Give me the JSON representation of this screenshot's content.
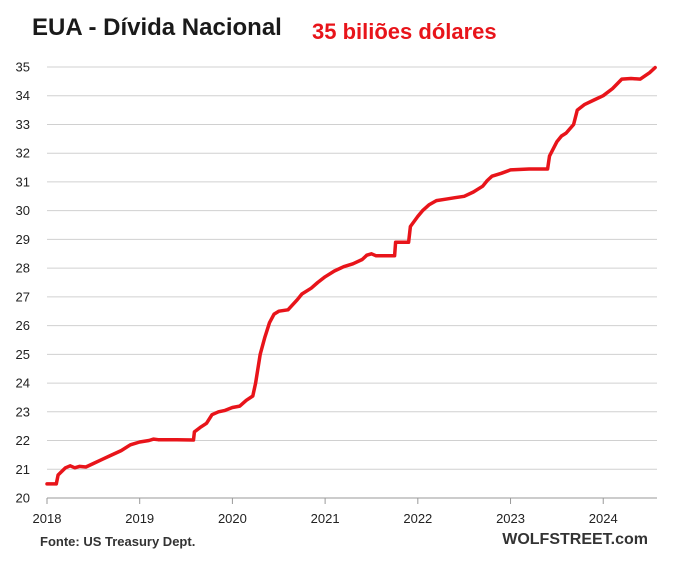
{
  "chart_data": {
    "type": "line",
    "title": "EUA - Dívida Nacional",
    "subtitle": "35 biliões dólares",
    "source": "Fonte: US Treasury Dept.",
    "brand": "WOLFSTREET.com",
    "xlabel": "",
    "ylabel": "",
    "ylim": [
      20,
      35
    ],
    "xlim": [
      2018.0,
      2024.58
    ],
    "x_ticks": [
      "2018",
      "2019",
      "2020",
      "2021",
      "2022",
      "2023",
      "2024"
    ],
    "y_ticks": [
      20,
      21,
      22,
      23,
      24,
      25,
      26,
      27,
      28,
      29,
      30,
      31,
      32,
      33,
      34,
      35
    ],
    "grid": true,
    "colors": {
      "line": "#e8141a",
      "subtitle": "#e8141a",
      "grid": "#d0d0d0"
    },
    "series": [
      {
        "values": [
          [
            2018.0,
            20.49
          ],
          [
            2018.1,
            20.49
          ],
          [
            2018.12,
            20.8
          ],
          [
            2018.2,
            21.05
          ],
          [
            2018.25,
            21.12
          ],
          [
            2018.3,
            21.05
          ],
          [
            2018.35,
            21.1
          ],
          [
            2018.42,
            21.08
          ],
          [
            2018.5,
            21.2
          ],
          [
            2018.6,
            21.35
          ],
          [
            2018.7,
            21.5
          ],
          [
            2018.8,
            21.65
          ],
          [
            2018.9,
            21.85
          ],
          [
            2019.0,
            21.95
          ],
          [
            2019.1,
            22.0
          ],
          [
            2019.15,
            22.05
          ],
          [
            2019.2,
            22.03
          ],
          [
            2019.4,
            22.03
          ],
          [
            2019.58,
            22.02
          ],
          [
            2019.59,
            22.3
          ],
          [
            2019.65,
            22.45
          ],
          [
            2019.72,
            22.6
          ],
          [
            2019.78,
            22.9
          ],
          [
            2019.85,
            23.0
          ],
          [
            2019.92,
            23.05
          ],
          [
            2020.0,
            23.15
          ],
          [
            2020.08,
            23.2
          ],
          [
            2020.15,
            23.4
          ],
          [
            2020.22,
            23.55
          ],
          [
            2020.25,
            24.0
          ],
          [
            2020.3,
            25.0
          ],
          [
            2020.35,
            25.6
          ],
          [
            2020.4,
            26.1
          ],
          [
            2020.45,
            26.4
          ],
          [
            2020.5,
            26.5
          ],
          [
            2020.6,
            26.55
          ],
          [
            2020.7,
            26.9
          ],
          [
            2020.75,
            27.1
          ],
          [
            2020.85,
            27.3
          ],
          [
            2020.92,
            27.5
          ],
          [
            2021.0,
            27.7
          ],
          [
            2021.1,
            27.9
          ],
          [
            2021.2,
            28.05
          ],
          [
            2021.3,
            28.15
          ],
          [
            2021.4,
            28.3
          ],
          [
            2021.45,
            28.45
          ],
          [
            2021.5,
            28.5
          ],
          [
            2021.55,
            28.43
          ],
          [
            2021.75,
            28.43
          ],
          [
            2021.76,
            28.9
          ],
          [
            2021.9,
            28.9
          ],
          [
            2021.92,
            29.45
          ],
          [
            2022.0,
            29.8
          ],
          [
            2022.05,
            30.0
          ],
          [
            2022.12,
            30.2
          ],
          [
            2022.2,
            30.35
          ],
          [
            2022.3,
            30.4
          ],
          [
            2022.4,
            30.45
          ],
          [
            2022.5,
            30.5
          ],
          [
            2022.6,
            30.65
          ],
          [
            2022.7,
            30.85
          ],
          [
            2022.75,
            31.05
          ],
          [
            2022.8,
            31.2
          ],
          [
            2022.9,
            31.3
          ],
          [
            2023.0,
            31.42
          ],
          [
            2023.2,
            31.45
          ],
          [
            2023.4,
            31.45
          ],
          [
            2023.42,
            31.9
          ],
          [
            2023.5,
            32.4
          ],
          [
            2023.55,
            32.6
          ],
          [
            2023.6,
            32.7
          ],
          [
            2023.68,
            33.0
          ],
          [
            2023.72,
            33.5
          ],
          [
            2023.8,
            33.7
          ],
          [
            2023.9,
            33.85
          ],
          [
            2024.0,
            34.0
          ],
          [
            2024.1,
            34.25
          ],
          [
            2024.2,
            34.58
          ],
          [
            2024.3,
            34.6
          ],
          [
            2024.4,
            34.58
          ],
          [
            2024.5,
            34.8
          ],
          [
            2024.56,
            34.98
          ]
        ]
      }
    ]
  }
}
